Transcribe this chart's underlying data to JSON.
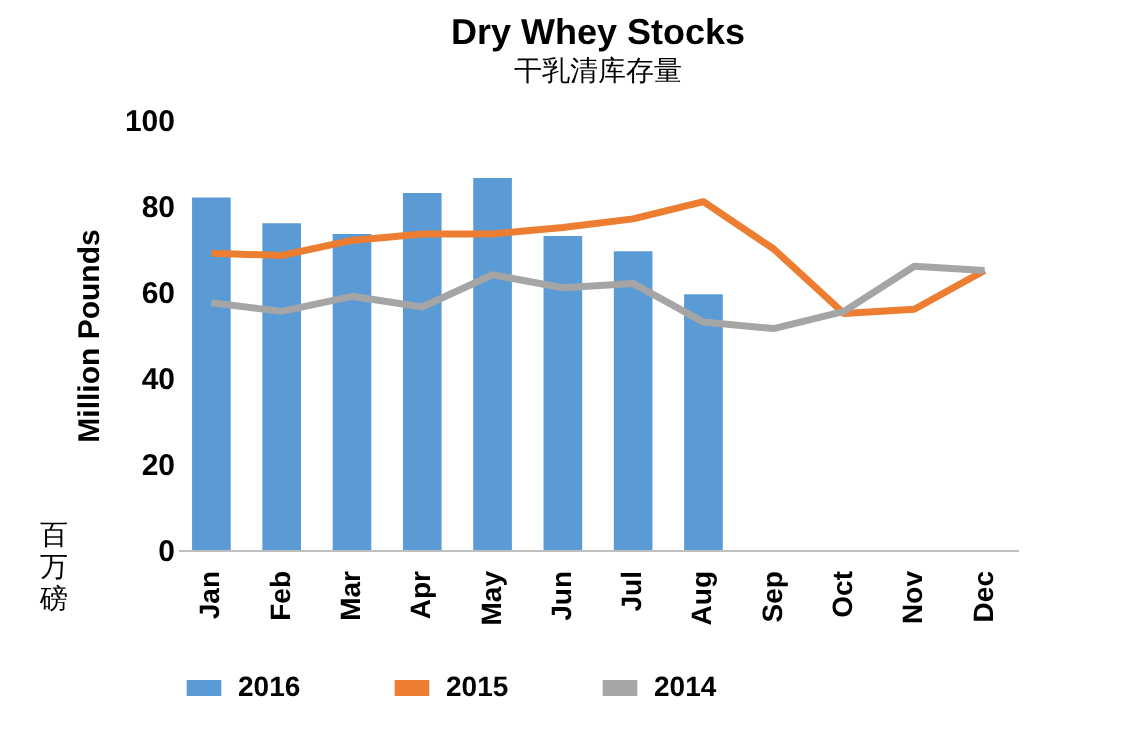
{
  "chart_data": {
    "type": "bar",
    "title": "Dry Whey Stocks",
    "subtitle": "干乳清库存量",
    "ylabel": "Million Pounds",
    "annotations": [
      "百万磅"
    ],
    "categories": [
      "Jan",
      "Feb",
      "Mar",
      "Apr",
      "May",
      "Jun",
      "Jul",
      "Aug",
      "Sep",
      "Oct",
      "Nov",
      "Dec"
    ],
    "series": [
      {
        "name": "2016",
        "color": "#5b9bd5",
        "values": [
          82,
          76,
          73.5,
          83,
          86.5,
          73,
          69.5,
          59.5,
          null,
          null,
          null,
          null
        ]
      },
      {
        "name": "2015",
        "color": "#ed7d31",
        "type": "line",
        "values": [
          69,
          68.5,
          72,
          73.5,
          73.5,
          75,
          77,
          81,
          70,
          55,
          56,
          65
        ]
      },
      {
        "name": "2014",
        "color": "#a5a5a5",
        "type": "line",
        "values": [
          57.5,
          55.5,
          59,
          56.5,
          64,
          61,
          62,
          53,
          51.5,
          55.5,
          66,
          65
        ]
      }
    ],
    "ylim": [
      0,
      100
    ],
    "yticks": [
      0,
      20,
      40,
      60,
      80,
      100
    ],
    "grid": false,
    "legend": "bottom",
    "marker": "none",
    "line_style": "solid"
  }
}
